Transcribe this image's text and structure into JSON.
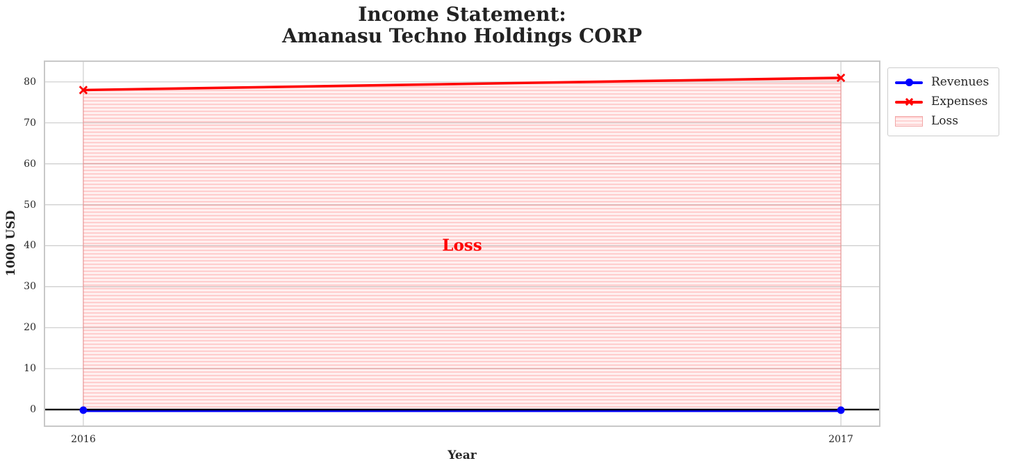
{
  "title": {
    "line1": "Income Statement:",
    "line2": "Amanasu Techno Holdings CORP"
  },
  "chart_data": {
    "type": "line",
    "title": "Income Statement: Amanasu Techno Holdings CORP",
    "x": [
      2016,
      2017
    ],
    "series": [
      {
        "name": "Revenues",
        "values": [
          0,
          0
        ],
        "color": "#0000ff",
        "marker": "circle",
        "linewidth": 3
      },
      {
        "name": "Expenses",
        "values": [
          78,
          81
        ],
        "color": "#ff0000",
        "marker": "x",
        "linewidth": 3
      }
    ],
    "fill_between": {
      "label": "Loss",
      "upper_series": "Expenses",
      "lower_series": "Revenues",
      "fill_color": "#ff0000",
      "fill_alpha": 0.12,
      "hatch": "horizontal-stripes"
    },
    "annotation": {
      "text": "Loss",
      "x": 2016.5,
      "y": 40,
      "color": "#ff0000",
      "bold": true
    },
    "xlabel": "Year",
    "ylabel": "1000 USD",
    "xticks": [
      "2016",
      "2017"
    ],
    "yticks": [
      0,
      10,
      20,
      30,
      40,
      50,
      60,
      70,
      80
    ],
    "xlim": [
      2015.9487,
      2017.0513
    ],
    "ylim": [
      -4.05,
      85.05
    ],
    "zero_line": {
      "show": true,
      "color": "#000000"
    },
    "grid": {
      "show": true,
      "color": "#cccccc"
    },
    "legend": {
      "position": "upper-right-outside",
      "entries": [
        "Revenues",
        "Expenses",
        "Loss"
      ]
    }
  },
  "colors": {
    "revenues": "#0000ff",
    "expenses": "#ff0000",
    "loss_fill_light": "rgba(255,0,0,0.055)",
    "loss_fill_stripe": "rgba(255,0,0,0.16)",
    "loss_edge": "rgba(240,140,140,0.9)",
    "grid": "#cccccc",
    "spine": "#c8c8c8",
    "text": "#262626",
    "background": "#ffffff"
  }
}
